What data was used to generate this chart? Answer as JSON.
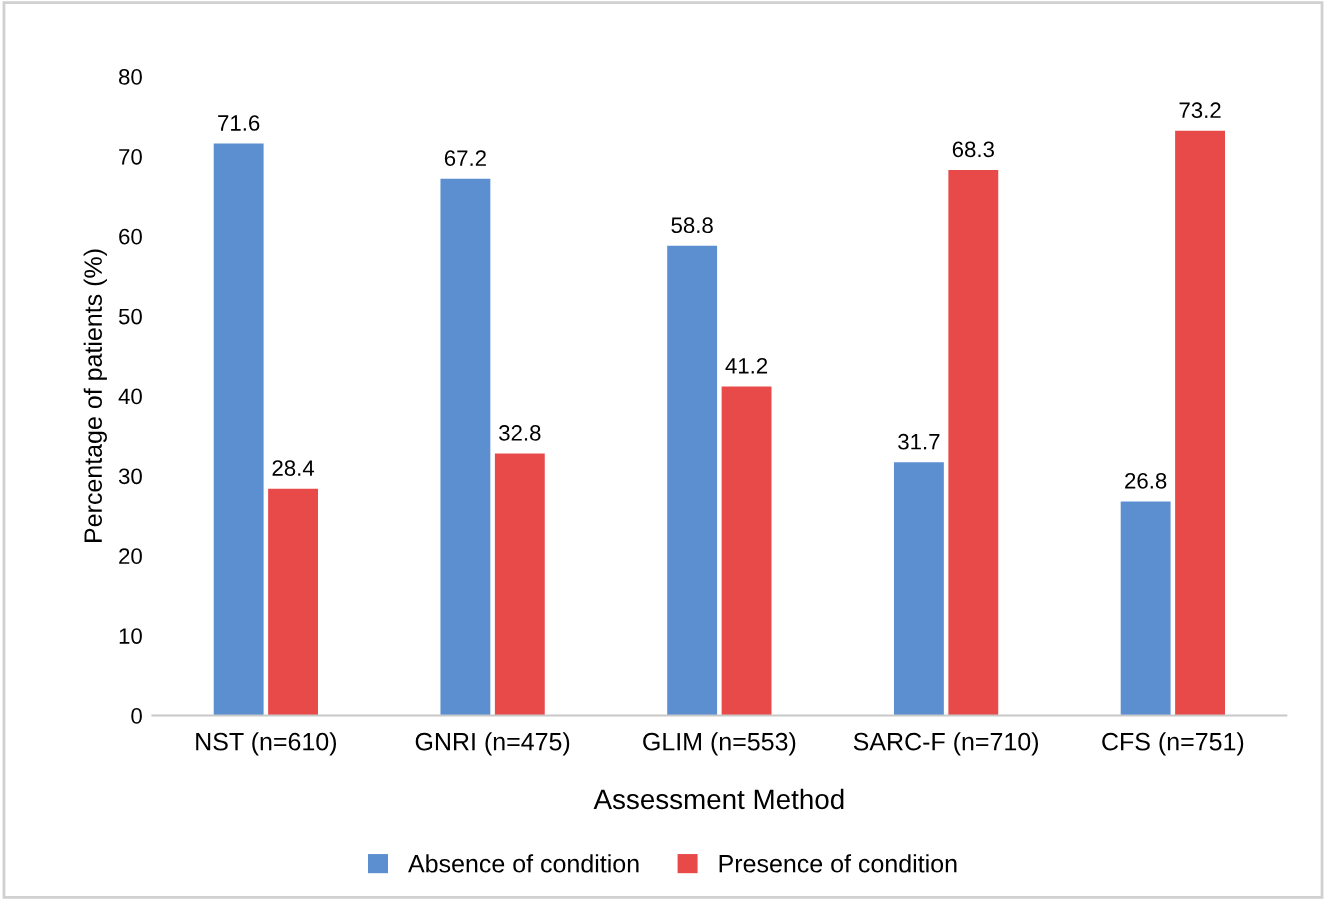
{
  "chart_data": {
    "type": "bar",
    "xlabel": "Assessment Method",
    "ylabel": "Percentage of patients (%)",
    "categories": [
      "NST (n=610)",
      "GNRI (n=475)",
      "GLIM (n=553)",
      "SARC-F (n=710)",
      "CFS (n=751)"
    ],
    "series": [
      {
        "name": "Absence of condition",
        "color": "#5b8fd0",
        "values": [
          71.6,
          67.2,
          58.8,
          31.7,
          26.8
        ]
      },
      {
        "name": "Presence of condition",
        "color": "#e84a4a",
        "values": [
          28.4,
          32.8,
          41.2,
          68.3,
          73.2
        ]
      }
    ],
    "ylim": [
      0,
      80
    ],
    "yticks": [
      0,
      10,
      20,
      30,
      40,
      50,
      60,
      70,
      80
    ],
    "data_labels": true,
    "grid": false,
    "legend": "bottom"
  }
}
